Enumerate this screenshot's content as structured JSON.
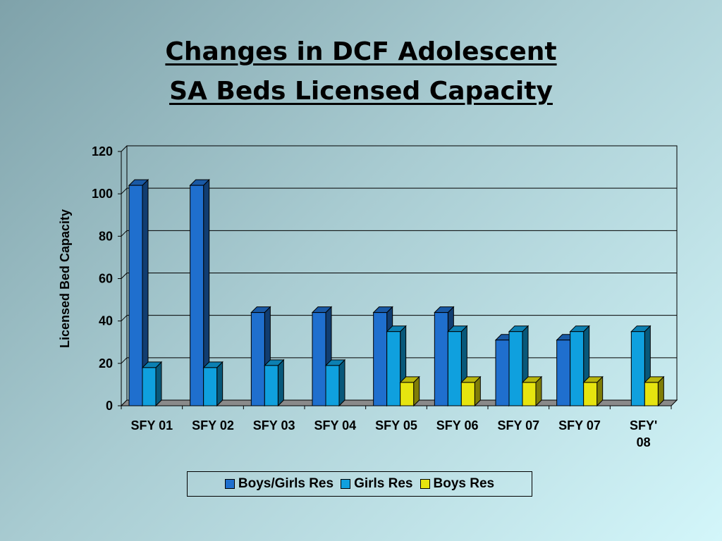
{
  "title": {
    "line1": "Changes in DCF Adolescent",
    "line2": "SA Beds Licensed Capacity"
  },
  "colors": {
    "boys_girls_res": "#1f6fce",
    "girls_res": "#0fa0de",
    "boys_res": "#e6e40f"
  },
  "chart_data": {
    "type": "bar",
    "categories": [
      "SFY 01",
      "SFY 02",
      "SFY 03",
      "SFY 04",
      "SFY 05",
      "SFY 06",
      "SFY 07",
      "SFY 07",
      "SFY' 08"
    ],
    "series": [
      {
        "name": "Boys/Girls Res",
        "values": [
          104,
          104,
          44,
          44,
          44,
          44,
          31,
          31,
          0
        ]
      },
      {
        "name": "Girls Res",
        "values": [
          18,
          18,
          19,
          19,
          35,
          35,
          35,
          35,
          35
        ]
      },
      {
        "name": "Boys Res",
        "values": [
          0,
          0,
          0,
          0,
          11,
          11,
          11,
          11,
          11
        ]
      }
    ],
    "xlabel": "",
    "ylabel": "Licensed Bed Capacity",
    "ylim": [
      0,
      120
    ],
    "yticks": [
      0,
      20,
      40,
      60,
      80,
      100,
      120
    ],
    "grid": true,
    "legend_position": "bottom"
  }
}
